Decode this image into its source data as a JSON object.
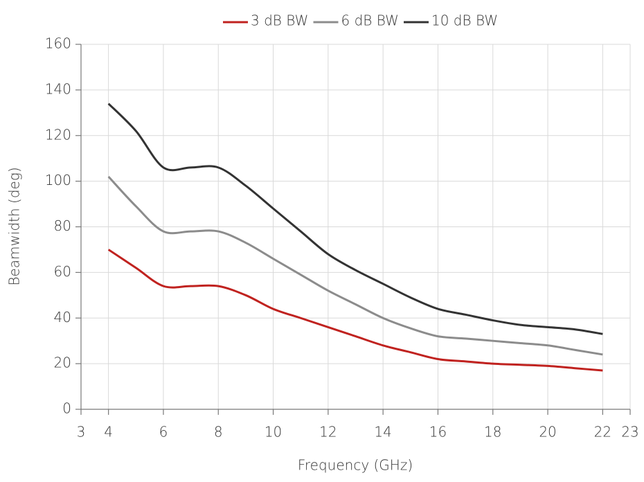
{
  "chart_data": {
    "type": "line",
    "x": [
      4,
      5,
      6,
      7,
      8,
      9,
      10,
      11,
      12,
      13,
      14,
      15,
      16,
      17,
      18,
      19,
      20,
      21,
      22
    ],
    "series": [
      {
        "name": "3 dB BW",
        "color": "#c0221f",
        "values": [
          70,
          62,
          54,
          54,
          54,
          50,
          44,
          40,
          36,
          32,
          28,
          25,
          22,
          21,
          20,
          19.5,
          19,
          18,
          17
        ]
      },
      {
        "name": "6 dB BW",
        "color": "#8c8c8c",
        "values": [
          102,
          89,
          78,
          78,
          78,
          73,
          66,
          59,
          52,
          46,
          40,
          35.5,
          32,
          31,
          30,
          29,
          28,
          26,
          24
        ]
      },
      {
        "name": "10 dB BW",
        "color": "#333333",
        "values": [
          134,
          122,
          106,
          106,
          106,
          98,
          88,
          78,
          68,
          61,
          55,
          49,
          44,
          41.5,
          39,
          37,
          36,
          35,
          33
        ]
      }
    ],
    "xlabel": "Frequency (GHz)",
    "ylabel": "Beamwidth (deg)",
    "xlim": [
      3,
      23
    ],
    "xticks": [
      3,
      4,
      6,
      8,
      10,
      12,
      14,
      16,
      18,
      20,
      22,
      23
    ],
    "ylim": [
      0,
      160
    ],
    "yticks": [
      0,
      20,
      40,
      60,
      80,
      100,
      120,
      140,
      160
    ],
    "grid": true,
    "legend": "top"
  }
}
